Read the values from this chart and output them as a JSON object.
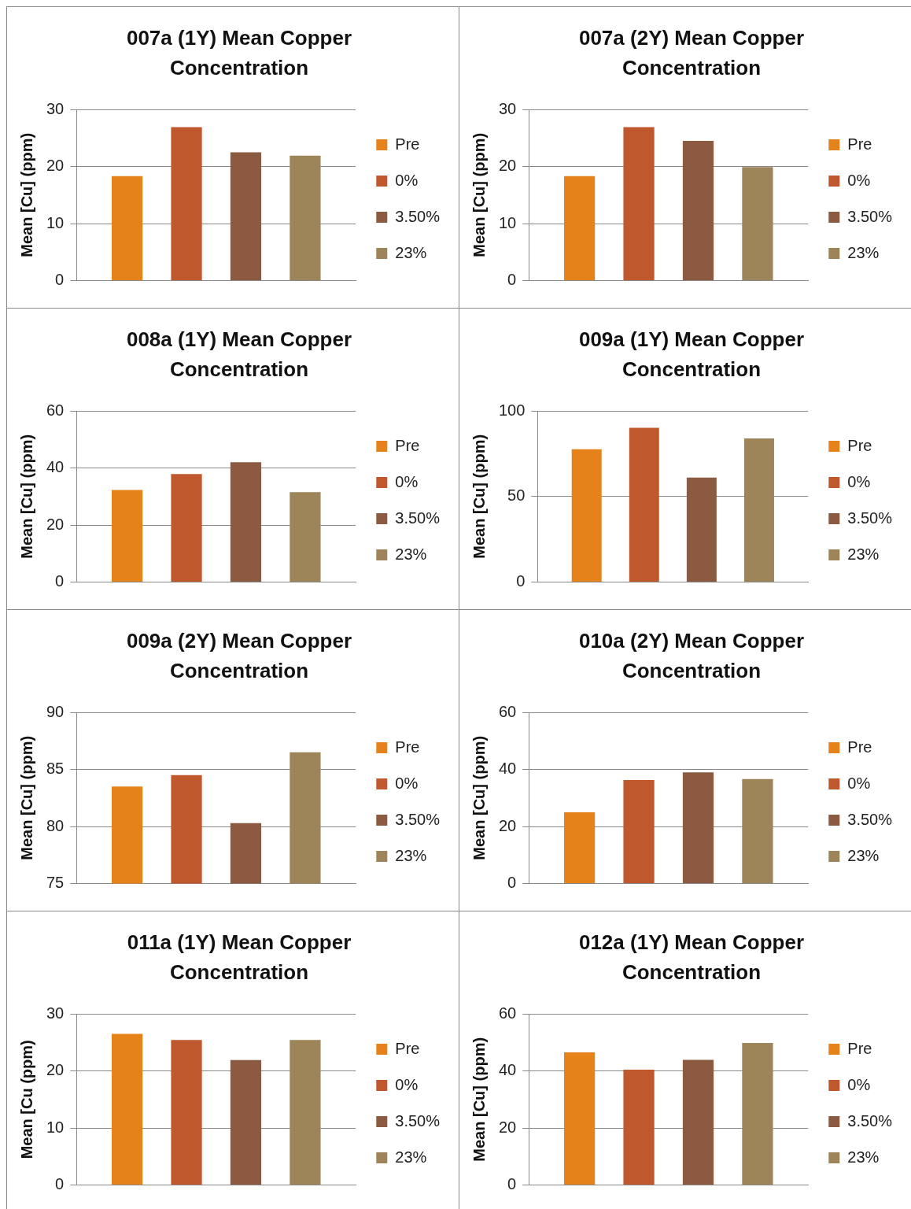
{
  "chart_data": [
    {
      "type": "bar",
      "title": "007a (1Y) Mean Copper Concentration",
      "ylabel": "Mean [Cu] (ppm)",
      "categories": [
        null
      ],
      "ylim": [
        0,
        30
      ],
      "yticks": [
        0,
        10,
        20,
        30
      ],
      "grid": "y",
      "legend": "right",
      "series": [
        {
          "name": "Pre",
          "color": "#e6821a",
          "values": [
            18.3
          ]
        },
        {
          "name": "0%",
          "color": "#c0582e",
          "values": [
            26.9
          ]
        },
        {
          "name": "3.50%",
          "color": "#8b5a40",
          "values": [
            22.5
          ]
        },
        {
          "name": "23%",
          "color": "#9e8459",
          "values": [
            21.9
          ]
        }
      ]
    },
    {
      "type": "bar",
      "title": "007a (2Y) Mean Copper Concentration",
      "ylabel": "Mean [Cu] (ppm)",
      "categories": [
        null
      ],
      "ylim": [
        0,
        30
      ],
      "yticks": [
        0,
        10,
        20,
        30
      ],
      "grid": "y",
      "legend": "right",
      "series": [
        {
          "name": "Pre",
          "color": "#e6821a",
          "values": [
            18.3
          ]
        },
        {
          "name": "0%",
          "color": "#c0582e",
          "values": [
            26.9
          ]
        },
        {
          "name": "3.50%",
          "color": "#8b5a40",
          "values": [
            24.5
          ]
        },
        {
          "name": "23%",
          "color": "#9e8459",
          "values": [
            19.9
          ]
        }
      ]
    },
    {
      "type": "bar",
      "title": "008a (1Y) Mean Copper Concentration",
      "ylabel": "Mean [Cu] (ppm)",
      "categories": [
        null
      ],
      "ylim": [
        0,
        60
      ],
      "yticks": [
        0,
        20,
        40,
        60
      ],
      "grid": "y",
      "legend": "right",
      "series": [
        {
          "name": "Pre",
          "color": "#e6821a",
          "values": [
            32.3
          ]
        },
        {
          "name": "0%",
          "color": "#c0582e",
          "values": [
            37.9
          ]
        },
        {
          "name": "3.50%",
          "color": "#8b5a40",
          "values": [
            42
          ]
        },
        {
          "name": "23%",
          "color": "#9e8459",
          "values": [
            31.5
          ]
        }
      ]
    },
    {
      "type": "bar",
      "title": "009a (1Y) Mean Copper Concentration",
      "ylabel": "Mean [Cu] (ppm)",
      "categories": [
        null
      ],
      "ylim": [
        0,
        100
      ],
      "yticks": [
        0,
        50,
        100
      ],
      "grid": "y",
      "legend": "right",
      "series": [
        {
          "name": "Pre",
          "color": "#e6821a",
          "values": [
            77.6
          ]
        },
        {
          "name": "0%",
          "color": "#c0582e",
          "values": [
            90.1
          ]
        },
        {
          "name": "3.50%",
          "color": "#8b5a40",
          "values": [
            61
          ]
        },
        {
          "name": "23%",
          "color": "#9e8459",
          "values": [
            83.9
          ]
        }
      ]
    },
    {
      "type": "bar",
      "title": "009a (2Y) Mean Copper Concentration",
      "ylabel": "Mean [Cu] (ppm)",
      "categories": [
        null
      ],
      "ylim": [
        75,
        90
      ],
      "yticks": [
        75,
        80,
        85,
        90
      ],
      "grid": "y",
      "legend": "right",
      "series": [
        {
          "name": "Pre",
          "color": "#e6821a",
          "values": [
            83.5
          ]
        },
        {
          "name": "0%",
          "color": "#c0582e",
          "values": [
            84.5
          ]
        },
        {
          "name": "3.50%",
          "color": "#8b5a40",
          "values": [
            80.3
          ]
        },
        {
          "name": "23%",
          "color": "#9e8459",
          "values": [
            86.5
          ]
        }
      ]
    },
    {
      "type": "bar",
      "title": "010a (2Y) Mean Copper Concentration",
      "ylabel": "Mean [Cu] (ppm)",
      "categories": [
        null
      ],
      "ylim": [
        0,
        60
      ],
      "yticks": [
        0,
        20,
        40,
        60
      ],
      "grid": "y",
      "legend": "right",
      "series": [
        {
          "name": "Pre",
          "color": "#e6821a",
          "values": [
            25
          ]
        },
        {
          "name": "0%",
          "color": "#c0582e",
          "values": [
            36.3
          ]
        },
        {
          "name": "3.50%",
          "color": "#8b5a40",
          "values": [
            39
          ]
        },
        {
          "name": "23%",
          "color": "#9e8459",
          "values": [
            36.6
          ]
        }
      ]
    },
    {
      "type": "bar",
      "title": "011a (1Y) Mean Copper Concentration",
      "ylabel": "Mean [Cu (ppm)",
      "categories": [
        null
      ],
      "ylim": [
        0,
        30
      ],
      "yticks": [
        0,
        10,
        20,
        30
      ],
      "grid": "y",
      "legend": "right",
      "series": [
        {
          "name": "Pre",
          "color": "#e6821a",
          "values": [
            26.5
          ]
        },
        {
          "name": "0%",
          "color": "#c0582e",
          "values": [
            25.4
          ]
        },
        {
          "name": "3.50%",
          "color": "#8b5a40",
          "values": [
            21.9
          ]
        },
        {
          "name": "23%",
          "color": "#9e8459",
          "values": [
            25.4
          ]
        }
      ]
    },
    {
      "type": "bar",
      "title": "012a (1Y) Mean Copper Concentration",
      "ylabel": "Mean [Cu] (ppm)",
      "categories": [
        null
      ],
      "ylim": [
        0,
        60
      ],
      "yticks": [
        0,
        20,
        40,
        60
      ],
      "grid": "y",
      "legend": "right",
      "series": [
        {
          "name": "Pre",
          "color": "#e6821a",
          "values": [
            46.5
          ]
        },
        {
          "name": "0%",
          "color": "#c0582e",
          "values": [
            40.4
          ]
        },
        {
          "name": "3.50%",
          "color": "#8b5a40",
          "values": [
            43.9
          ]
        },
        {
          "name": "23%",
          "color": "#9e8459",
          "values": [
            49.8
          ]
        }
      ]
    }
  ]
}
